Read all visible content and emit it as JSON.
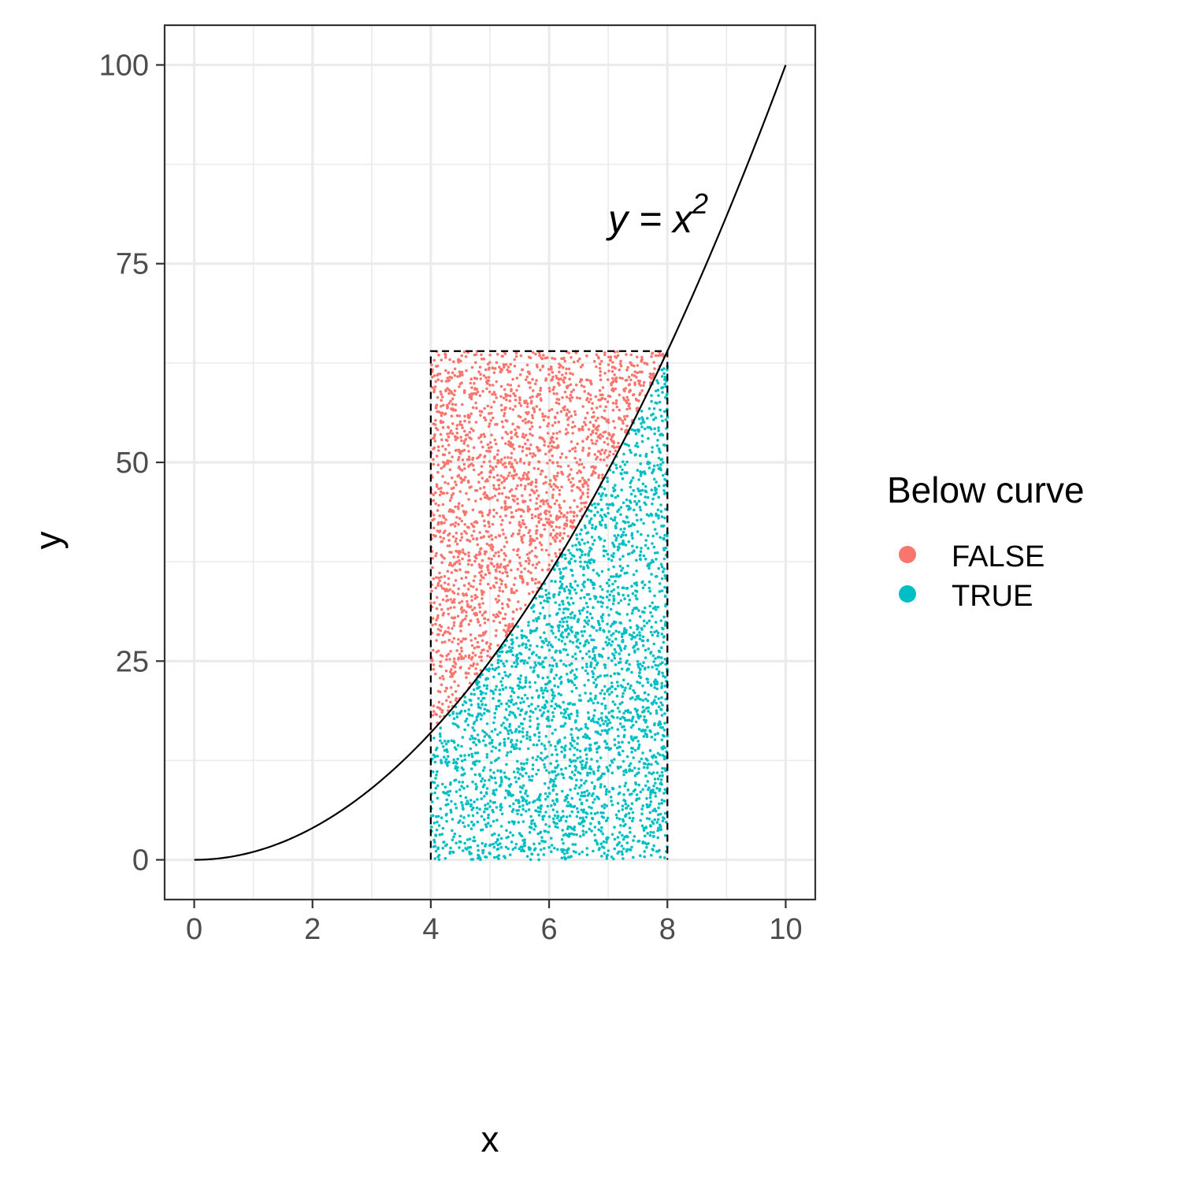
{
  "chart_data": {
    "type": "scatter",
    "title": "",
    "xlabel": "x",
    "ylabel": "y",
    "xlim": [
      -0.5,
      10.5
    ],
    "ylim": [
      -5,
      105
    ],
    "x_ticks": [
      0,
      2,
      4,
      6,
      8,
      10
    ],
    "x_tick_labels": [
      "0",
      "2",
      "4",
      "6",
      "8",
      "10"
    ],
    "y_ticks": [
      0,
      25,
      50,
      75,
      100
    ],
    "y_tick_labels": [
      "0",
      "25",
      "50",
      "75",
      "100"
    ],
    "grid": true,
    "curve": {
      "expression": "y = x^2",
      "x_range": [
        0,
        10
      ]
    },
    "rectangle": {
      "x_range": [
        4,
        8
      ],
      "y_range": [
        0,
        64
      ],
      "style": "dashed"
    },
    "annotation": {
      "base": "y = x",
      "superscript": "2",
      "x": 7,
      "y": 84
    },
    "sample": {
      "x_range": [
        4,
        8
      ],
      "y_range": [
        0,
        64
      ],
      "approx_points": 5000
    },
    "legend": {
      "title": "Below curve",
      "position": "right",
      "items": [
        {
          "label": "FALSE",
          "color": "#F8766D"
        },
        {
          "label": "TRUE",
          "color": "#00BFC4"
        }
      ]
    }
  }
}
